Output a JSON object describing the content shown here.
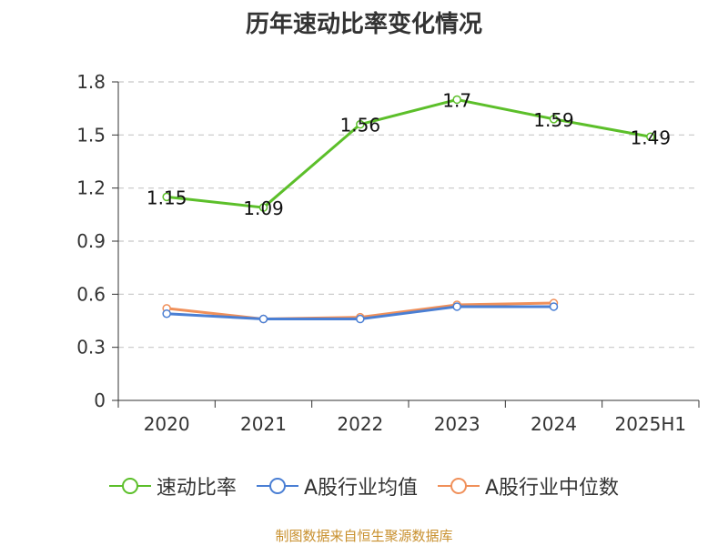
{
  "chart_data": {
    "type": "line",
    "title": "历年速动比率变化情况",
    "categories": [
      "2020",
      "2021",
      "2022",
      "2023",
      "2024",
      "2025H1"
    ],
    "ylim": [
      0,
      1.8
    ],
    "yticks": [
      "0",
      "0.3",
      "0.6",
      "0.9",
      "1.2",
      "1.5",
      "1.8"
    ],
    "grid": true,
    "legend_position": "bottom",
    "series": [
      {
        "name": "速动比率",
        "color": "#5cbf2a",
        "values": [
          1.15,
          1.09,
          1.56,
          1.7,
          1.59,
          1.49
        ],
        "labels": [
          "1.15",
          "1.09",
          "1.56",
          "1.7",
          "1.59",
          "1.49"
        ]
      },
      {
        "name": "A股行业均值",
        "color": "#4a7fd4",
        "values": [
          0.49,
          0.46,
          0.46,
          0.53,
          0.53,
          null
        ]
      },
      {
        "name": "A股行业中位数",
        "color": "#f0905a",
        "values": [
          0.52,
          0.46,
          0.47,
          0.54,
          0.55,
          null
        ]
      }
    ]
  },
  "source": "制图数据来自恒生聚源数据库"
}
